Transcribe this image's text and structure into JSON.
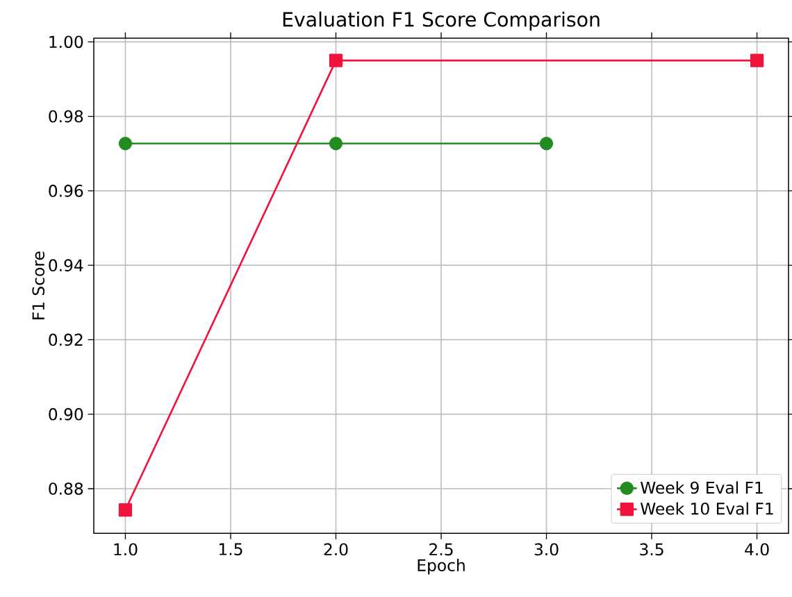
{
  "chart_data": {
    "type": "line",
    "title": "Evaluation F1 Score Comparison",
    "xlabel": "Epoch",
    "ylabel": "F1 Score",
    "series": [
      {
        "name": "Week 9 Eval F1",
        "color": "#228b22",
        "marker": "circle",
        "x": [
          1,
          2,
          3
        ],
        "values": [
          0.9727,
          0.9727,
          0.9727
        ]
      },
      {
        "name": "Week 10 Eval F1",
        "color": "#f0143c",
        "marker": "square",
        "x": [
          1,
          2,
          4
        ],
        "values": [
          0.8743,
          0.995,
          0.995
        ]
      }
    ],
    "xlim": [
      0.85,
      4.15
    ],
    "ylim": [
      0.868,
      1.001
    ],
    "xticks": [
      {
        "value": 1.0,
        "label": "1.0"
      },
      {
        "value": 1.5,
        "label": "1.5"
      },
      {
        "value": 2.0,
        "label": "2.0"
      },
      {
        "value": 2.5,
        "label": "2.5"
      },
      {
        "value": 3.0,
        "label": "3.0"
      },
      {
        "value": 3.5,
        "label": "3.5"
      },
      {
        "value": 4.0,
        "label": "4.0"
      }
    ],
    "yticks": [
      {
        "value": 0.88,
        "label": "0.88"
      },
      {
        "value": 0.9,
        "label": "0.90"
      },
      {
        "value": 0.92,
        "label": "0.92"
      },
      {
        "value": 0.94,
        "label": "0.94"
      },
      {
        "value": 0.96,
        "label": "0.96"
      },
      {
        "value": 0.98,
        "label": "0.98"
      },
      {
        "value": 1.0,
        "label": "1.00"
      }
    ],
    "grid": true,
    "legend": "bottom right"
  }
}
